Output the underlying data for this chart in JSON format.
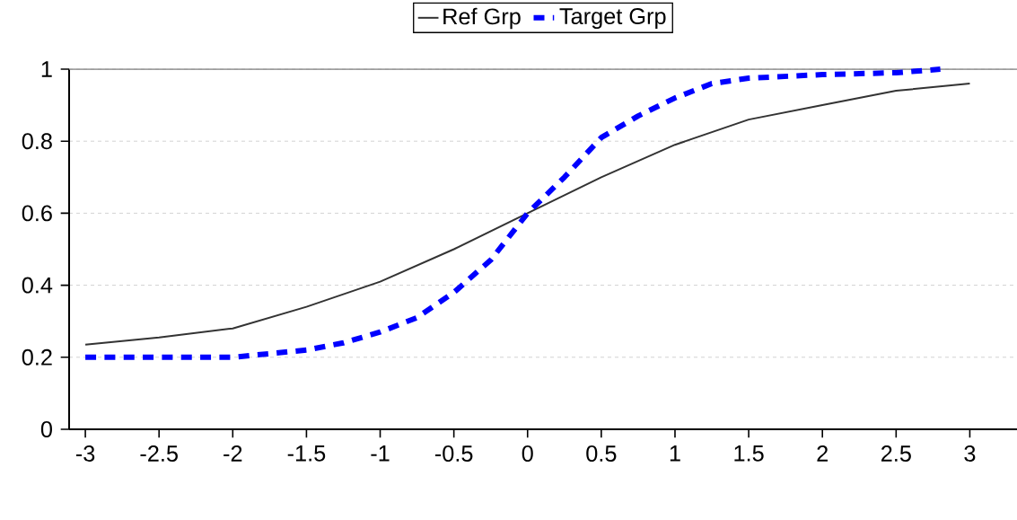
{
  "chart_data": {
    "type": "line",
    "x": [
      -3,
      -2.5,
      -2,
      -1.5,
      -1,
      -0.5,
      0,
      0.5,
      1,
      1.5,
      2,
      2.5,
      3
    ],
    "series": [
      {
        "name": "Ref Grp",
        "color": "#333333",
        "line_style": "solid",
        "values": [
          0.235,
          0.255,
          0.28,
          0.34,
          0.41,
          0.5,
          0.6,
          0.7,
          0.79,
          0.86,
          0.9,
          0.94,
          0.96
        ]
      },
      {
        "name": "Target Grp",
        "color": "#0000ff",
        "line_style": "dashed",
        "x": [
          -3,
          -2.5,
          -2,
          -1.75,
          -1.5,
          -1.25,
          -1,
          -0.75,
          -0.5,
          -0.25,
          0,
          0.25,
          0.5,
          0.75,
          1,
          1.25,
          1.5,
          2,
          2.5,
          2.8
        ],
        "values": [
          0.2,
          0.2,
          0.2,
          0.21,
          0.22,
          0.24,
          0.27,
          0.31,
          0.38,
          0.47,
          0.6,
          0.7,
          0.81,
          0.87,
          0.92,
          0.96,
          0.975,
          0.985,
          0.99,
          1.0
        ]
      }
    ],
    "xlim": [
      -3.11,
      3.32
    ],
    "xticks": [
      -3,
      -2.5,
      -2,
      -1.5,
      -1,
      -0.5,
      0,
      0.5,
      1,
      1.5,
      2,
      2.5,
      3
    ],
    "ylim": [
      0,
      1
    ],
    "yticks": [
      0,
      0.2,
      0.4,
      0.6,
      0.8,
      1
    ],
    "grid": "y",
    "legend": "top",
    "marker": "none"
  }
}
